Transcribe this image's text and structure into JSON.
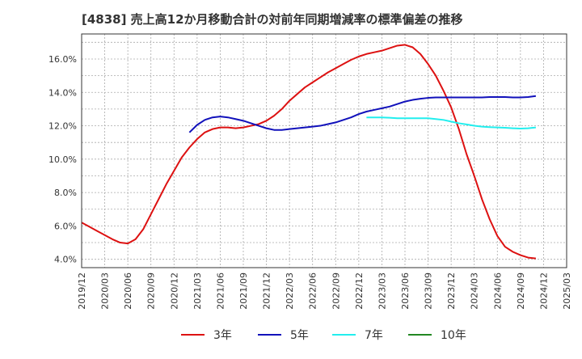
{
  "chart_data": {
    "type": "line",
    "title": "[4838]  売上高12か月移動合計の対前年同期増減率の標準偏差の推移",
    "xlabel": "",
    "ylabel": "",
    "x_ticks": [
      "2019/12",
      "2020/03",
      "2020/06",
      "2020/09",
      "2020/12",
      "2021/03",
      "2021/06",
      "2021/09",
      "2021/12",
      "2022/03",
      "2022/06",
      "2022/09",
      "2022/12",
      "2023/03",
      "2023/06",
      "2023/09",
      "2023/12",
      "2024/03",
      "2024/06",
      "2024/09",
      "2024/12",
      "2025/03"
    ],
    "y_ticks": [
      "4.0%",
      "6.0%",
      "8.0%",
      "10.0%",
      "12.0%",
      "14.0%",
      "16.0%"
    ],
    "xlim": [
      "2019/12",
      "2025/03"
    ],
    "ylim": [
      3.5,
      17.5
    ],
    "grid": true,
    "legend_position": "bottom",
    "series": [
      {
        "name": "3年",
        "color": "#dd1111",
        "points": [
          [
            "2019/12",
            6.2
          ],
          [
            "2020/01",
            5.95
          ],
          [
            "2020/02",
            5.7
          ],
          [
            "2020/03",
            5.45
          ],
          [
            "2020/04",
            5.2
          ],
          [
            "2020/05",
            5.0
          ],
          [
            "2020/06",
            4.95
          ],
          [
            "2020/07",
            5.2
          ],
          [
            "2020/08",
            5.8
          ],
          [
            "2020/09",
            6.7
          ],
          [
            "2020/10",
            7.6
          ],
          [
            "2020/11",
            8.5
          ],
          [
            "2020/12",
            9.3
          ],
          [
            "2021/01",
            10.1
          ],
          [
            "2021/02",
            10.7
          ],
          [
            "2021/03",
            11.2
          ],
          [
            "2021/04",
            11.6
          ],
          [
            "2021/05",
            11.8
          ],
          [
            "2021/06",
            11.9
          ],
          [
            "2021/07",
            11.9
          ],
          [
            "2021/08",
            11.85
          ],
          [
            "2021/09",
            11.9
          ],
          [
            "2021/10",
            12.0
          ],
          [
            "2021/11",
            12.1
          ],
          [
            "2021/12",
            12.3
          ],
          [
            "2022/01",
            12.6
          ],
          [
            "2022/02",
            13.0
          ],
          [
            "2022/03",
            13.5
          ],
          [
            "2022/04",
            13.9
          ],
          [
            "2022/05",
            14.3
          ],
          [
            "2022/06",
            14.6
          ],
          [
            "2022/07",
            14.9
          ],
          [
            "2022/08",
            15.2
          ],
          [
            "2022/09",
            15.45
          ],
          [
            "2022/10",
            15.7
          ],
          [
            "2022/11",
            15.95
          ],
          [
            "2022/12",
            16.15
          ],
          [
            "2023/01",
            16.3
          ],
          [
            "2023/02",
            16.4
          ],
          [
            "2023/03",
            16.5
          ],
          [
            "2023/04",
            16.65
          ],
          [
            "2023/05",
            16.8
          ],
          [
            "2023/06",
            16.85
          ],
          [
            "2023/07",
            16.7
          ],
          [
            "2023/08",
            16.3
          ],
          [
            "2023/09",
            15.7
          ],
          [
            "2023/10",
            15.0
          ],
          [
            "2023/11",
            14.1
          ],
          [
            "2023/12",
            13.1
          ],
          [
            "2024/01",
            11.8
          ],
          [
            "2024/02",
            10.3
          ],
          [
            "2024/03",
            9.0
          ],
          [
            "2024/04",
            7.6
          ],
          [
            "2024/05",
            6.4
          ],
          [
            "2024/06",
            5.4
          ],
          [
            "2024/07",
            4.75
          ],
          [
            "2024/08",
            4.45
          ],
          [
            "2024/09",
            4.25
          ],
          [
            "2024/10",
            4.1
          ],
          [
            "2024/11",
            4.05
          ]
        ]
      },
      {
        "name": "5年",
        "color": "#1111bb",
        "points": [
          [
            "2021/02",
            11.6
          ],
          [
            "2021/03",
            12.05
          ],
          [
            "2021/04",
            12.35
          ],
          [
            "2021/05",
            12.5
          ],
          [
            "2021/06",
            12.55
          ],
          [
            "2021/07",
            12.5
          ],
          [
            "2021/08",
            12.4
          ],
          [
            "2021/09",
            12.3
          ],
          [
            "2021/10",
            12.15
          ],
          [
            "2021/11",
            12.0
          ],
          [
            "2021/12",
            11.85
          ],
          [
            "2022/01",
            11.75
          ],
          [
            "2022/02",
            11.75
          ],
          [
            "2022/03",
            11.8
          ],
          [
            "2022/04",
            11.85
          ],
          [
            "2022/05",
            11.9
          ],
          [
            "2022/06",
            11.95
          ],
          [
            "2022/07",
            12.0
          ],
          [
            "2022/08",
            12.1
          ],
          [
            "2022/09",
            12.2
          ],
          [
            "2022/10",
            12.35
          ],
          [
            "2022/11",
            12.5
          ],
          [
            "2022/12",
            12.7
          ],
          [
            "2023/01",
            12.85
          ],
          [
            "2023/02",
            12.95
          ],
          [
            "2023/03",
            13.05
          ],
          [
            "2023/04",
            13.15
          ],
          [
            "2023/05",
            13.3
          ],
          [
            "2023/06",
            13.45
          ],
          [
            "2023/07",
            13.55
          ],
          [
            "2023/08",
            13.62
          ],
          [
            "2023/09",
            13.67
          ],
          [
            "2023/10",
            13.7
          ],
          [
            "2023/11",
            13.7
          ],
          [
            "2023/12",
            13.7
          ],
          [
            "2024/01",
            13.7
          ],
          [
            "2024/02",
            13.7
          ],
          [
            "2024/03",
            13.7
          ],
          [
            "2024/04",
            13.7
          ],
          [
            "2024/05",
            13.72
          ],
          [
            "2024/06",
            13.72
          ],
          [
            "2024/07",
            13.72
          ],
          [
            "2024/08",
            13.7
          ],
          [
            "2024/09",
            13.7
          ],
          [
            "2024/10",
            13.72
          ],
          [
            "2024/11",
            13.78
          ]
        ]
      },
      {
        "name": "7年",
        "color": "#22eeee",
        "points": [
          [
            "2023/01",
            12.5
          ],
          [
            "2023/02",
            12.5
          ],
          [
            "2023/03",
            12.5
          ],
          [
            "2023/04",
            12.48
          ],
          [
            "2023/05",
            12.45
          ],
          [
            "2023/06",
            12.45
          ],
          [
            "2023/07",
            12.45
          ],
          [
            "2023/08",
            12.45
          ],
          [
            "2023/09",
            12.45
          ],
          [
            "2023/10",
            12.4
          ],
          [
            "2023/11",
            12.35
          ],
          [
            "2023/12",
            12.25
          ],
          [
            "2024/01",
            12.15
          ],
          [
            "2024/02",
            12.08
          ],
          [
            "2024/03",
            12.0
          ],
          [
            "2024/04",
            11.95
          ],
          [
            "2024/05",
            11.92
          ],
          [
            "2024/06",
            11.9
          ],
          [
            "2024/07",
            11.88
          ],
          [
            "2024/08",
            11.85
          ],
          [
            "2024/09",
            11.83
          ],
          [
            "2024/10",
            11.85
          ],
          [
            "2024/11",
            11.9
          ]
        ]
      },
      {
        "name": "10年",
        "color": "#228822",
        "points": []
      }
    ]
  }
}
